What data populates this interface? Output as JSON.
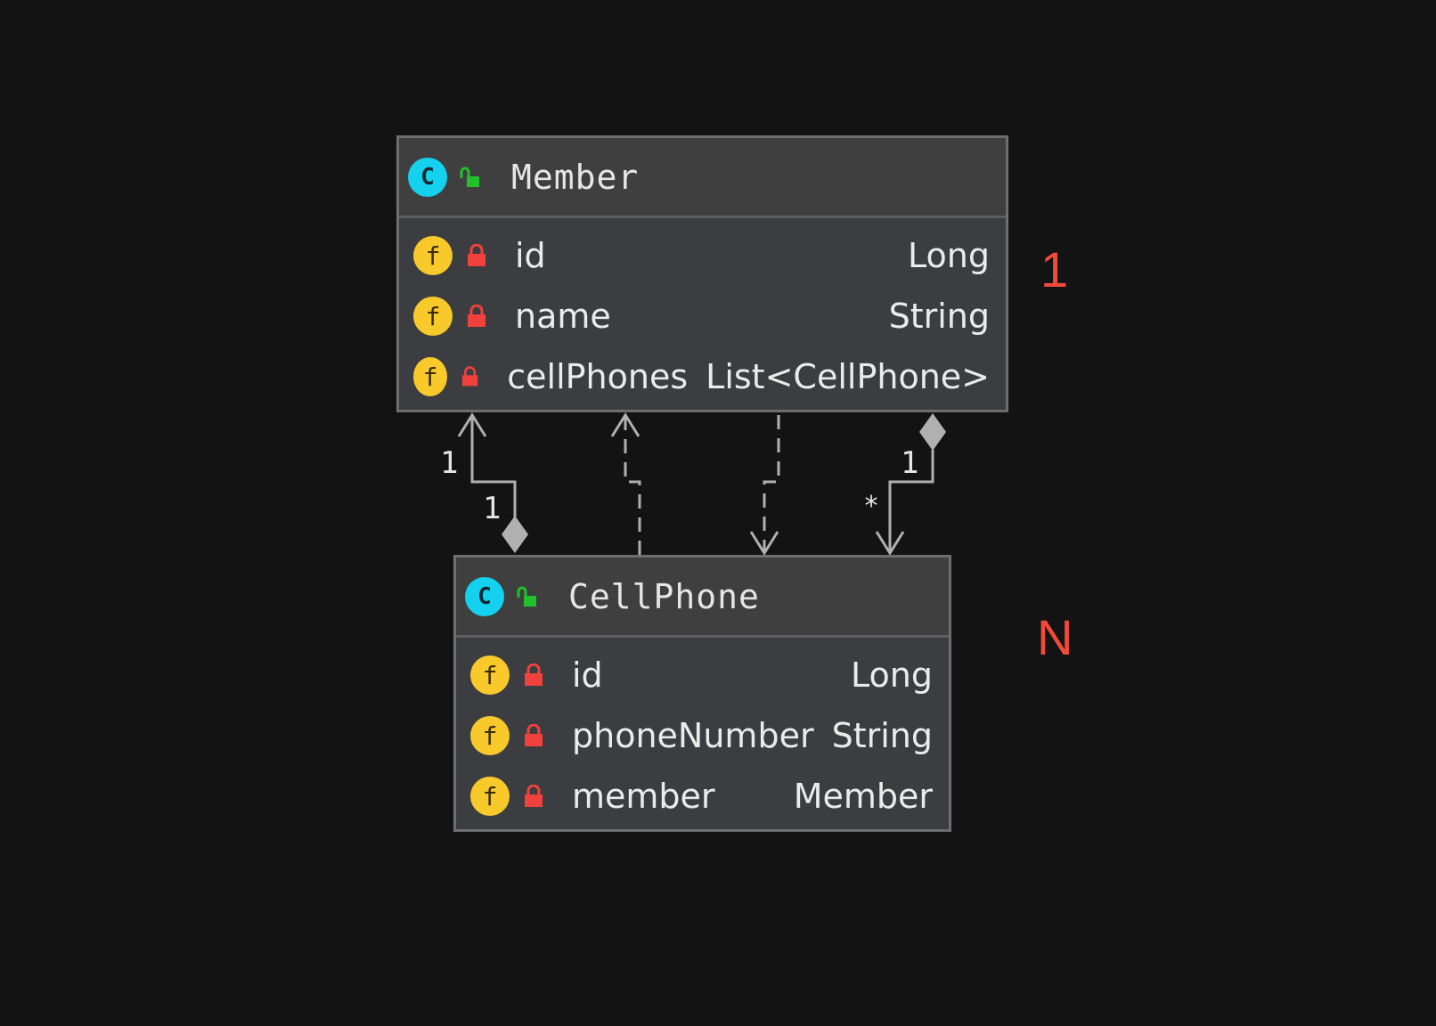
{
  "classes": {
    "member": {
      "icon_letter": "C",
      "name": "Member",
      "fields": [
        {
          "icon_letter": "f",
          "name": "id",
          "type": "Long"
        },
        {
          "icon_letter": "f",
          "name": "name",
          "type": "String"
        },
        {
          "icon_letter": "f",
          "name": "cellPhones",
          "type": "List<CellPhone>"
        }
      ]
    },
    "cellphone": {
      "icon_letter": "C",
      "name": "CellPhone",
      "fields": [
        {
          "icon_letter": "f",
          "name": "id",
          "type": "Long"
        },
        {
          "icon_letter": "f",
          "name": "phoneNumber",
          "type": "String"
        },
        {
          "icon_letter": "f",
          "name": "member",
          "type": "Member"
        }
      ]
    }
  },
  "annotations": {
    "member_multiplicity": "1",
    "cellphone_multiplicity": "N"
  },
  "connector_labels": {
    "left_top": "1",
    "left_bottom": "1",
    "right_top": "1",
    "right_bottom": "*"
  },
  "colors": {
    "background": "#131313",
    "class_icon": "#14d2ef",
    "field_icon": "#f8c92a",
    "public_lock": "#22c02a",
    "private_lock": "#f0413c",
    "annotation": "#f24a3a"
  }
}
